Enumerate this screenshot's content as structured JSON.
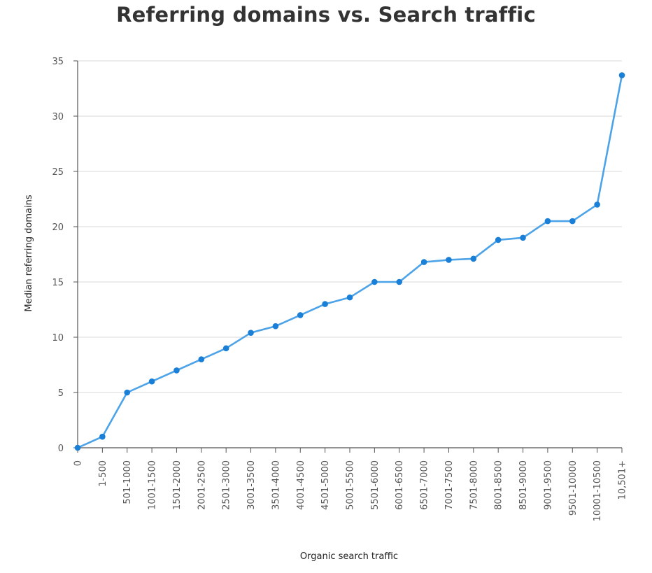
{
  "chart_data": {
    "type": "line",
    "title": "Referring domains vs. Search traffic",
    "xlabel": "Organic search traffic",
    "ylabel": "Median referring domains",
    "ylim": [
      0,
      35
    ],
    "yticks": [
      0,
      5,
      10,
      15,
      20,
      25,
      30,
      35
    ],
    "grid": true,
    "legend": "none",
    "categories": [
      "0",
      "1-500",
      "501-1000",
      "1001-1500",
      "1501-2000",
      "2001-2500",
      "2501-3000",
      "3001-3500",
      "3501-4000",
      "4001-4500",
      "4501-5000",
      "5001-5500",
      "5501-6000",
      "6001-6500",
      "6501-7000",
      "7001-7500",
      "7501-8000",
      "8001-8500",
      "8501-9000",
      "9001-9500",
      "9501-10000",
      "10001-10500",
      "10,501+"
    ],
    "series": [
      {
        "values": [
          0,
          1,
          5,
          6,
          7,
          8,
          9,
          10.4,
          11,
          12,
          13,
          13.6,
          15,
          15,
          16.8,
          17,
          17.1,
          18.8,
          19,
          20.5,
          20.5,
          22,
          33.7
        ]
      }
    ],
    "colors": {
      "line": "#4da3e8",
      "marker": "#1a7fd6",
      "grid": "#e5e5e5",
      "axis": "#555555",
      "title": "#333333"
    }
  }
}
